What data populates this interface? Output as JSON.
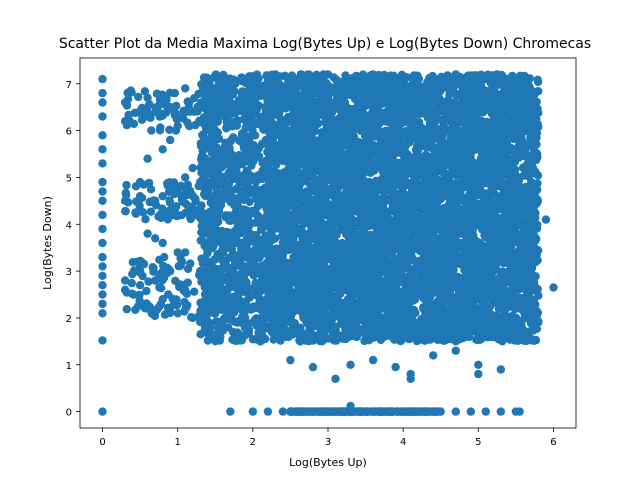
{
  "chart_data": {
    "type": "scatter",
    "title": "Scatter Plot da Media Maxima Log(Bytes Up) e Log(Bytes Down) Chromecas",
    "xlabel": "Log(Bytes Up)",
    "ylabel": "Log(Bytes Down)",
    "xlim": [
      -0.3,
      6.3
    ],
    "ylim": [
      -0.35,
      7.55
    ],
    "xticks": [
      "0",
      "1",
      "2",
      "3",
      "4",
      "5",
      "6"
    ],
    "yticks": [
      "0",
      "1",
      "2",
      "3",
      "4",
      "5",
      "6",
      "7"
    ],
    "grid": false,
    "legend": "none",
    "color": "#1f77b4",
    "series_summary": {
      "main_cluster": {
        "x_range": [
          1.3,
          5.8
        ],
        "y_range": [
          1.5,
          7.2
        ]
      },
      "left_sparse_cluster": {
        "x_range": [
          0.3,
          1.3
        ],
        "y_range": [
          2.0,
          6.9
        ]
      },
      "zero_x_column": {
        "x": 0.0,
        "y_range": [
          1.5,
          7.1
        ]
      },
      "zero_y_row": {
        "y": 0.0,
        "x_range": [
          1.7,
          5.6
        ]
      }
    },
    "points": [
      [
        0,
        0
      ],
      [
        0,
        1.52
      ],
      [
        0,
        2.1
      ],
      [
        0,
        2.3
      ],
      [
        0,
        2.5
      ],
      [
        0,
        2.7
      ],
      [
        0,
        2.9
      ],
      [
        0,
        3.1
      ],
      [
        0,
        3.3
      ],
      [
        0,
        3.6
      ],
      [
        0,
        3.9
      ],
      [
        0,
        4.2
      ],
      [
        0,
        4.5
      ],
      [
        0,
        4.7
      ],
      [
        0,
        4.9
      ],
      [
        0,
        5.3
      ],
      [
        0,
        5.6
      ],
      [
        0,
        5.9
      ],
      [
        0,
        6.3
      ],
      [
        0,
        6.6
      ],
      [
        0,
        6.8
      ],
      [
        0,
        7.1
      ],
      [
        1.7,
        0
      ],
      [
        2.0,
        0
      ],
      [
        2.2,
        0
      ],
      [
        2.4,
        0
      ],
      [
        2.6,
        0
      ],
      [
        2.8,
        0
      ],
      [
        3.0,
        0
      ],
      [
        3.2,
        0
      ],
      [
        3.3,
        0.12
      ],
      [
        3.5,
        0
      ],
      [
        3.7,
        0
      ],
      [
        3.9,
        0
      ],
      [
        4.1,
        0
      ],
      [
        4.3,
        0
      ],
      [
        4.5,
        0
      ],
      [
        4.7,
        0
      ],
      [
        4.9,
        0
      ],
      [
        5.1,
        0
      ],
      [
        5.3,
        0
      ],
      [
        5.5,
        0
      ],
      [
        5.55,
        0
      ],
      [
        0.3,
        2.6
      ],
      [
        0.3,
        2.8
      ],
      [
        0.3,
        4.5
      ],
      [
        0.3,
        6.2
      ],
      [
        0.3,
        6.6
      ],
      [
        0.5,
        2.3
      ],
      [
        0.5,
        2.7
      ],
      [
        0.5,
        3.0
      ],
      [
        0.5,
        3.1
      ],
      [
        0.5,
        4.3
      ],
      [
        0.5,
        4.6
      ],
      [
        0.5,
        4.9
      ],
      [
        0.6,
        2.2
      ],
      [
        0.6,
        3.8
      ],
      [
        0.6,
        5.4
      ],
      [
        0.6,
        6.3
      ],
      [
        0.6,
        6.7
      ],
      [
        0.7,
        2.8
      ],
      [
        0.7,
        3.7
      ],
      [
        0.7,
        4.5
      ],
      [
        0.7,
        6.4
      ],
      [
        0.8,
        2.4
      ],
      [
        0.8,
        3.6
      ],
      [
        0.8,
        4.6
      ],
      [
        0.8,
        5.6
      ],
      [
        0.8,
        6.7
      ],
      [
        0.9,
        2.2
      ],
      [
        0.9,
        3.0
      ],
      [
        0.9,
        4.3
      ],
      [
        0.9,
        5.8
      ],
      [
        0.9,
        6.5
      ],
      [
        1.0,
        2.1
      ],
      [
        1.0,
        3.4
      ],
      [
        1.0,
        4.7
      ],
      [
        1.0,
        6.1
      ],
      [
        1.1,
        2.6
      ],
      [
        1.1,
        3.4
      ],
      [
        1.1,
        5.0
      ],
      [
        1.1,
        6.9
      ],
      [
        1.2,
        2.0
      ],
      [
        1.2,
        4.2
      ],
      [
        1.2,
        5.2
      ],
      [
        1.3,
        3.0
      ],
      [
        1.3,
        4.9
      ],
      [
        1.3,
        6.5
      ],
      [
        1.5,
        2.1
      ],
      [
        1.6,
        7.0
      ],
      [
        1.8,
        1.9
      ],
      [
        2.0,
        7.0
      ],
      [
        2.1,
        1.5
      ],
      [
        2.3,
        7.2
      ],
      [
        2.5,
        1.1
      ],
      [
        2.8,
        0.95
      ],
      [
        3.1,
        0.7
      ],
      [
        3.3,
        1.0
      ],
      [
        3.6,
        1.1
      ],
      [
        3.9,
        0.95
      ],
      [
        4.1,
        0.7
      ],
      [
        4.1,
        0.8
      ],
      [
        4.4,
        1.2
      ],
      [
        4.7,
        1.3
      ],
      [
        5.0,
        1.0
      ],
      [
        5.0,
        0.8
      ],
      [
        5.3,
        0.9
      ],
      [
        5.6,
        2.4
      ],
      [
        5.7,
        3.0
      ],
      [
        5.75,
        4.4
      ],
      [
        5.9,
        4.1
      ],
      [
        6.0,
        2.65
      ],
      [
        5.7,
        6.0
      ],
      [
        5.5,
        6.9
      ],
      [
        4.7,
        7.2
      ],
      [
        3.6,
        7.2
      ],
      [
        3.0,
        7.2
      ]
    ]
  }
}
